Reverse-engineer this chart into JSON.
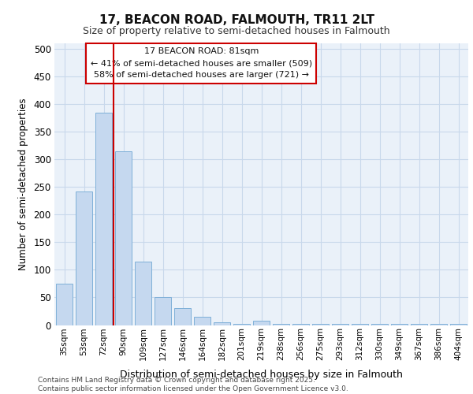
{
  "title1": "17, BEACON ROAD, FALMOUTH, TR11 2LT",
  "title2": "Size of property relative to semi-detached houses in Falmouth",
  "xlabel": "Distribution of semi-detached houses by size in Falmouth",
  "ylabel": "Number of semi-detached properties",
  "categories": [
    "35sqm",
    "53sqm",
    "72sqm",
    "90sqm",
    "109sqm",
    "127sqm",
    "146sqm",
    "164sqm",
    "182sqm",
    "201sqm",
    "219sqm",
    "238sqm",
    "256sqm",
    "275sqm",
    "293sqm",
    "312sqm",
    "330sqm",
    "349sqm",
    "367sqm",
    "386sqm",
    "404sqm"
  ],
  "values": [
    75,
    242,
    385,
    315,
    115,
    50,
    30,
    15,
    5,
    2,
    8,
    2,
    2,
    2,
    2,
    2,
    2,
    2,
    2,
    2,
    2
  ],
  "bar_color": "#c5d8ef",
  "bar_edge_color": "#7fb0d8",
  "grid_color": "#c8d8eb",
  "background_color": "#eaf1f9",
  "vline_color": "#cc0000",
  "vline_x": 2.5,
  "annotation_text": "17 BEACON ROAD: 81sqm\n← 41% of semi-detached houses are smaller (509)\n58% of semi-detached houses are larger (721) →",
  "annotation_box_edgecolor": "#cc0000",
  "footer_text": "Contains HM Land Registry data © Crown copyright and database right 2025.\nContains public sector information licensed under the Open Government Licence v3.0.",
  "ylim": [
    0,
    510
  ],
  "yticks": [
    0,
    50,
    100,
    150,
    200,
    250,
    300,
    350,
    400,
    450,
    500
  ]
}
